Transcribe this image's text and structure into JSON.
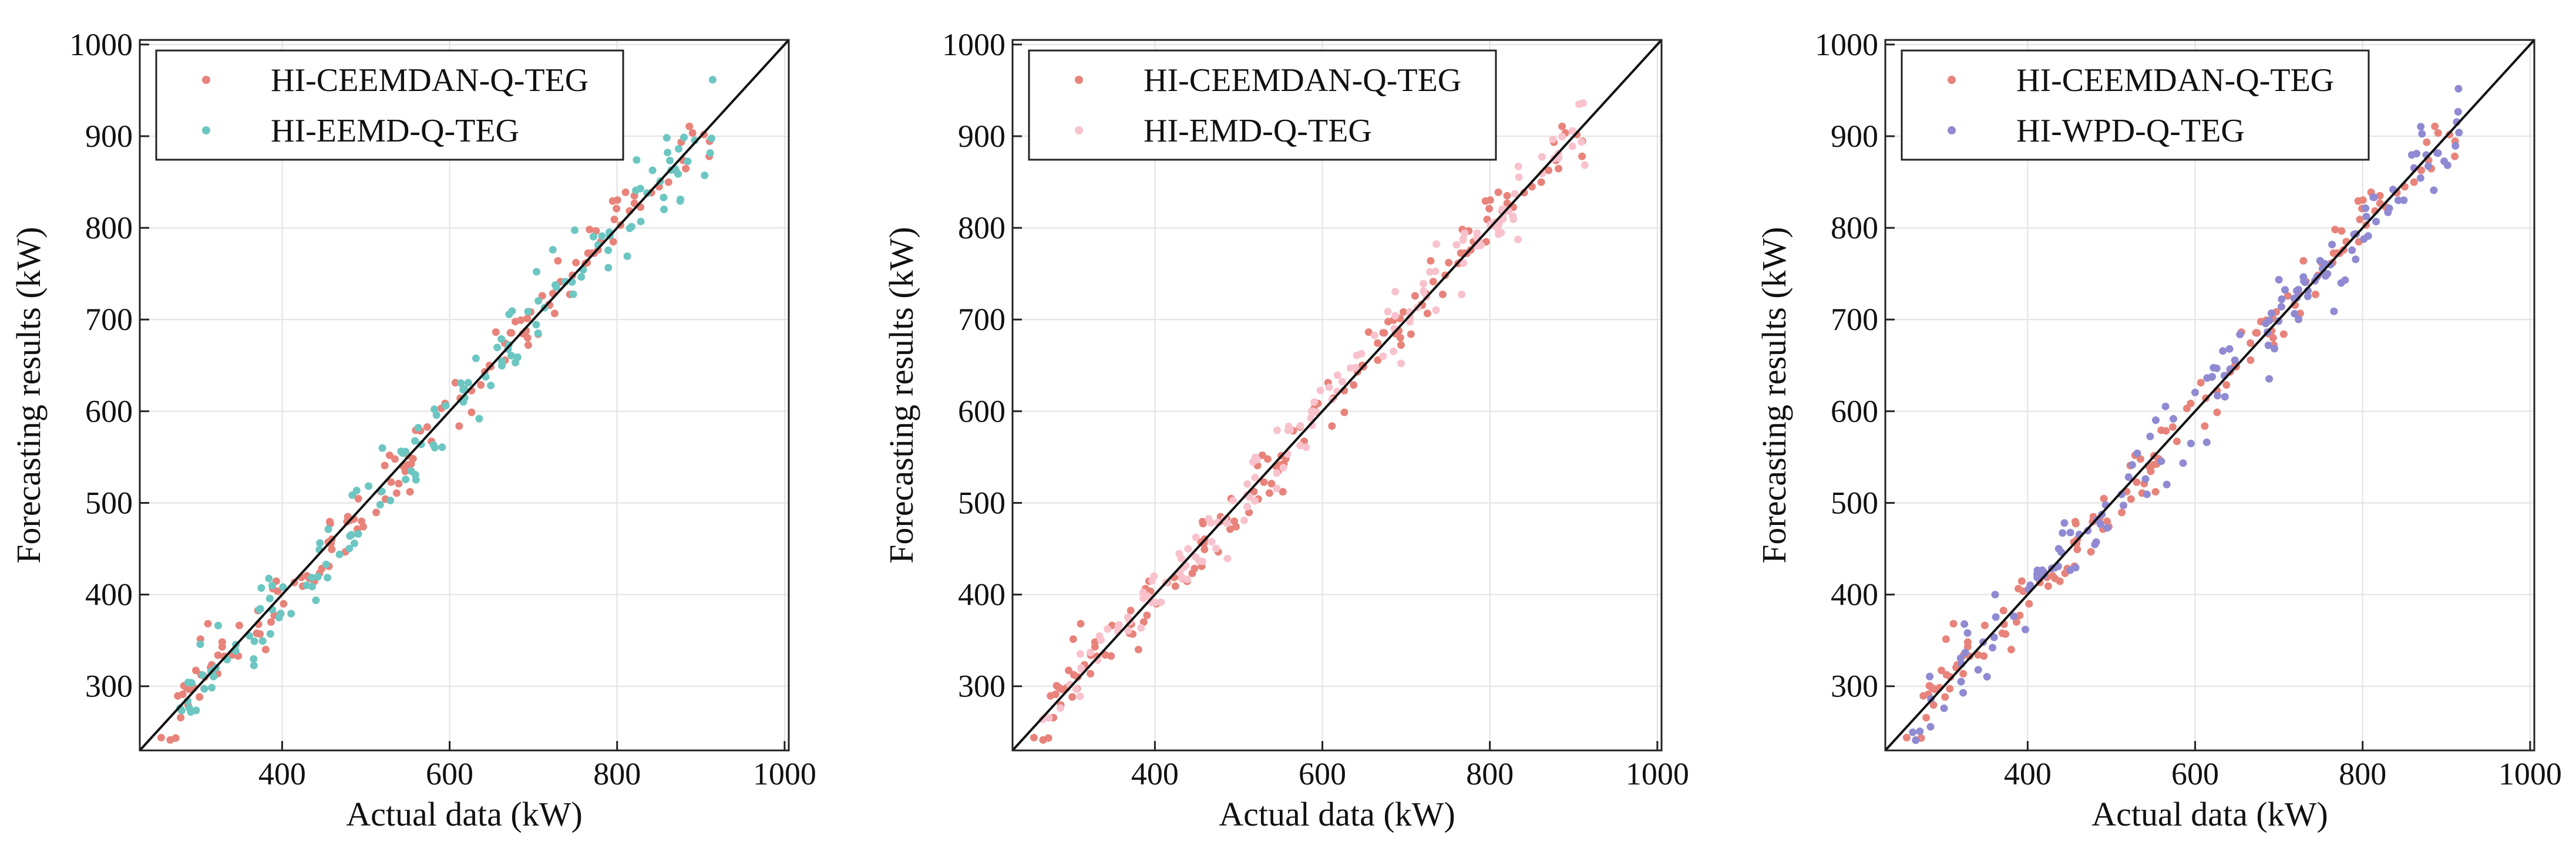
{
  "colors": {
    "ceemdan": "#e8837b",
    "eemd": "#6cc6c2",
    "emd": "#f8c2cc",
    "wpd": "#8f8ad2",
    "reference": "#111111"
  },
  "chart_data": [
    {
      "type": "scatter",
      "xlabel": "Actual data (kW)",
      "ylabel": "Forecasting results (kW)",
      "xlim": [
        230,
        1005
      ],
      "ylim": [
        230,
        1005
      ],
      "xticks": [
        "400",
        "600",
        "800",
        "1000"
      ],
      "yticks": [
        "300",
        "400",
        "500",
        "600",
        "700",
        "800",
        "900",
        "1000"
      ],
      "grid": true,
      "legend_position": "top-left",
      "reference_line": "y = x",
      "series": [
        {
          "name": "HI-CEEMDAN-Q-TEG",
          "color_key": "ceemdan",
          "seed": 11,
          "noise": 16
        },
        {
          "name": "HI-EEMD-Q-TEG",
          "color_key": "eemd",
          "seed": 23,
          "noise": 21
        }
      ]
    },
    {
      "type": "scatter",
      "xlabel": "Actual data (kW)",
      "ylabel": "Forecasting results (kW)",
      "xlim": [
        230,
        1005
      ],
      "ylim": [
        230,
        1005
      ],
      "xticks": [
        "400",
        "600",
        "800",
        "1000"
      ],
      "yticks": [
        "300",
        "400",
        "500",
        "600",
        "700",
        "800",
        "900",
        "1000"
      ],
      "grid": true,
      "legend_position": "top-left",
      "reference_line": "y = x",
      "series": [
        {
          "name": "HI-CEEMDAN-Q-TEG",
          "color_key": "ceemdan",
          "seed": 11,
          "noise": 16
        },
        {
          "name": "HI-EMD-Q-TEG",
          "color_key": "emd",
          "seed": 37,
          "noise": 19
        }
      ]
    },
    {
      "type": "scatter",
      "xlabel": "Actual data (kW)",
      "ylabel": "Forecasting results (kW)",
      "xlim": [
        230,
        1005
      ],
      "ylim": [
        230,
        1005
      ],
      "xticks": [
        "400",
        "600",
        "800",
        "1000"
      ],
      "yticks": [
        "300",
        "400",
        "500",
        "600",
        "700",
        "800",
        "900",
        "1000"
      ],
      "grid": true,
      "legend_position": "top-left",
      "reference_line": "y = x",
      "series": [
        {
          "name": "HI-CEEMDAN-Q-TEG",
          "color_key": "ceemdan",
          "seed": 11,
          "noise": 16
        },
        {
          "name": "HI-WPD-Q-TEG",
          "color_key": "wpd",
          "seed": 53,
          "noise": 20
        }
      ]
    }
  ]
}
